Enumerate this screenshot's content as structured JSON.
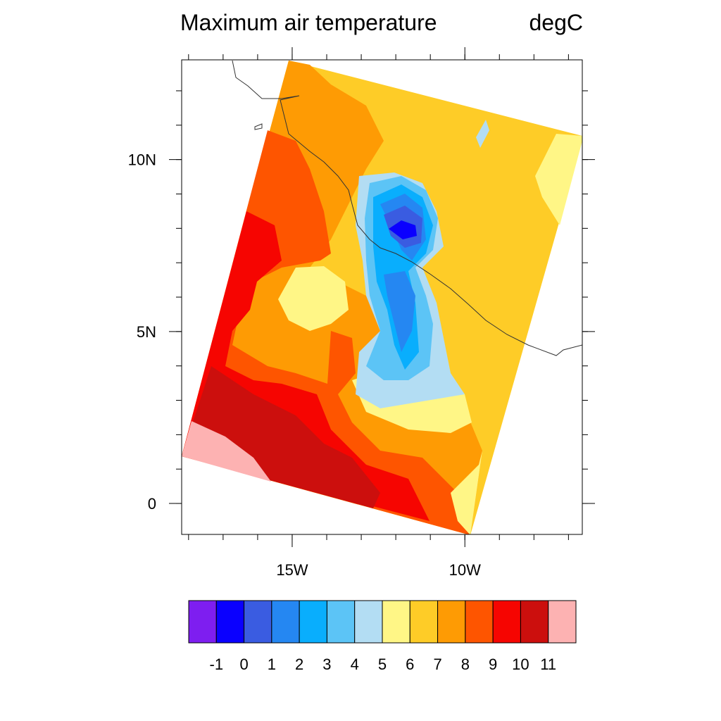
{
  "title": "Maximum air temperature",
  "units": "degC",
  "x_axis": {
    "ticks": [
      {
        "value": -15,
        "label": "15W"
      },
      {
        "value": -10,
        "label": "10W"
      }
    ]
  },
  "y_axis": {
    "ticks": [
      {
        "value": 0,
        "label": "0"
      },
      {
        "value": 5,
        "label": "5N"
      },
      {
        "value": 10,
        "label": "10N"
      }
    ]
  },
  "colorbar": {
    "labels": [
      "-1",
      "0",
      "1",
      "2",
      "3",
      "4",
      "5",
      "6",
      "7",
      "8",
      "9",
      "10",
      "11"
    ],
    "colors": [
      "#7e1ef0",
      "#0a00ff",
      "#3a5ce1",
      "#2587f2",
      "#09aefd",
      "#5cc4f6",
      "#b3ddf3",
      "#fff686",
      "#fecc27",
      "#fe9b04",
      "#fe5500",
      "#f60501",
      "#cc0f0d",
      "#fdb2b2"
    ]
  },
  "chart_data": {
    "type": "heatmap",
    "title": "Maximum air temperature",
    "units": "degC",
    "x_range": [
      -18.2,
      -6.6
    ],
    "y_range": [
      -0.9,
      12.9
    ],
    "levels": [
      -1,
      0,
      1,
      2,
      3,
      4,
      5,
      6,
      7,
      8,
      9,
      10,
      11
    ]
  }
}
